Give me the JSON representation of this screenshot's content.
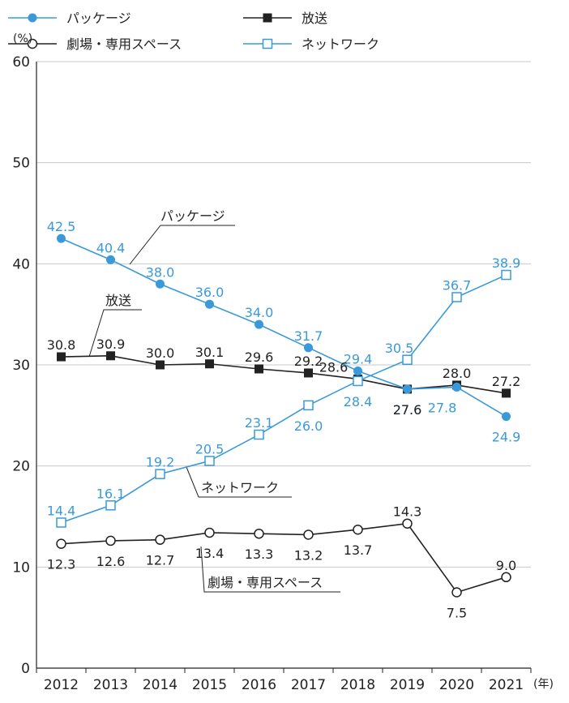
{
  "chart_data": {
    "type": "line",
    "ylim": [
      0,
      60
    ],
    "yticks": [
      "0",
      "10",
      "20",
      "30",
      "40",
      "50",
      "60"
    ],
    "y_unit": "(%)",
    "x_unit": "(年)",
    "grid": true,
    "legend_position": "top",
    "categories": [
      "2012",
      "2013",
      "2014",
      "2015",
      "2016",
      "2017",
      "2018",
      "2019",
      "2020",
      "2021"
    ],
    "series": [
      {
        "name": "パッケージ",
        "color": "#3a9ad9",
        "marker": "filled-circle",
        "values": [
          42.5,
          40.4,
          38.0,
          36.0,
          34.0,
          31.7,
          29.4,
          27.6,
          27.8,
          24.9
        ],
        "labels": [
          "42.5",
          "40.4",
          "38.0",
          "36.0",
          "34.0",
          "31.7",
          "29.4",
          "27.6",
          "27.8",
          "24.9"
        ]
      },
      {
        "name": "放送",
        "color": "#222222",
        "marker": "filled-square",
        "values": [
          30.8,
          30.9,
          30.0,
          30.1,
          29.6,
          29.2,
          28.6,
          27.6,
          28.0,
          27.2
        ],
        "labels": [
          "30.8",
          "30.9",
          "30.0",
          "30.1",
          "29.6",
          "29.2",
          "28.6",
          "27.6",
          "28.0",
          "27.2"
        ]
      },
      {
        "name": "ネットワーク",
        "color": "#3a9ad9",
        "marker": "open-square",
        "values": [
          14.4,
          16.1,
          19.2,
          20.5,
          23.1,
          26.0,
          28.4,
          30.5,
          36.7,
          38.9
        ],
        "labels": [
          "14.4",
          "16.1",
          "19.2",
          "20.5",
          "23.1",
          "26.0",
          "28.4",
          "30.5",
          "36.7",
          "38.9"
        ]
      },
      {
        "name": "劇場・専用スペース",
        "color": "#222222",
        "marker": "open-circle",
        "values": [
          12.3,
          12.6,
          12.7,
          13.4,
          13.3,
          13.2,
          13.7,
          14.3,
          7.5,
          9.0
        ],
        "labels": [
          "12.3",
          "12.6",
          "12.7",
          "13.4",
          "13.3",
          "13.2",
          "13.7",
          "14.3",
          "7.5",
          "9.0"
        ]
      }
    ]
  }
}
